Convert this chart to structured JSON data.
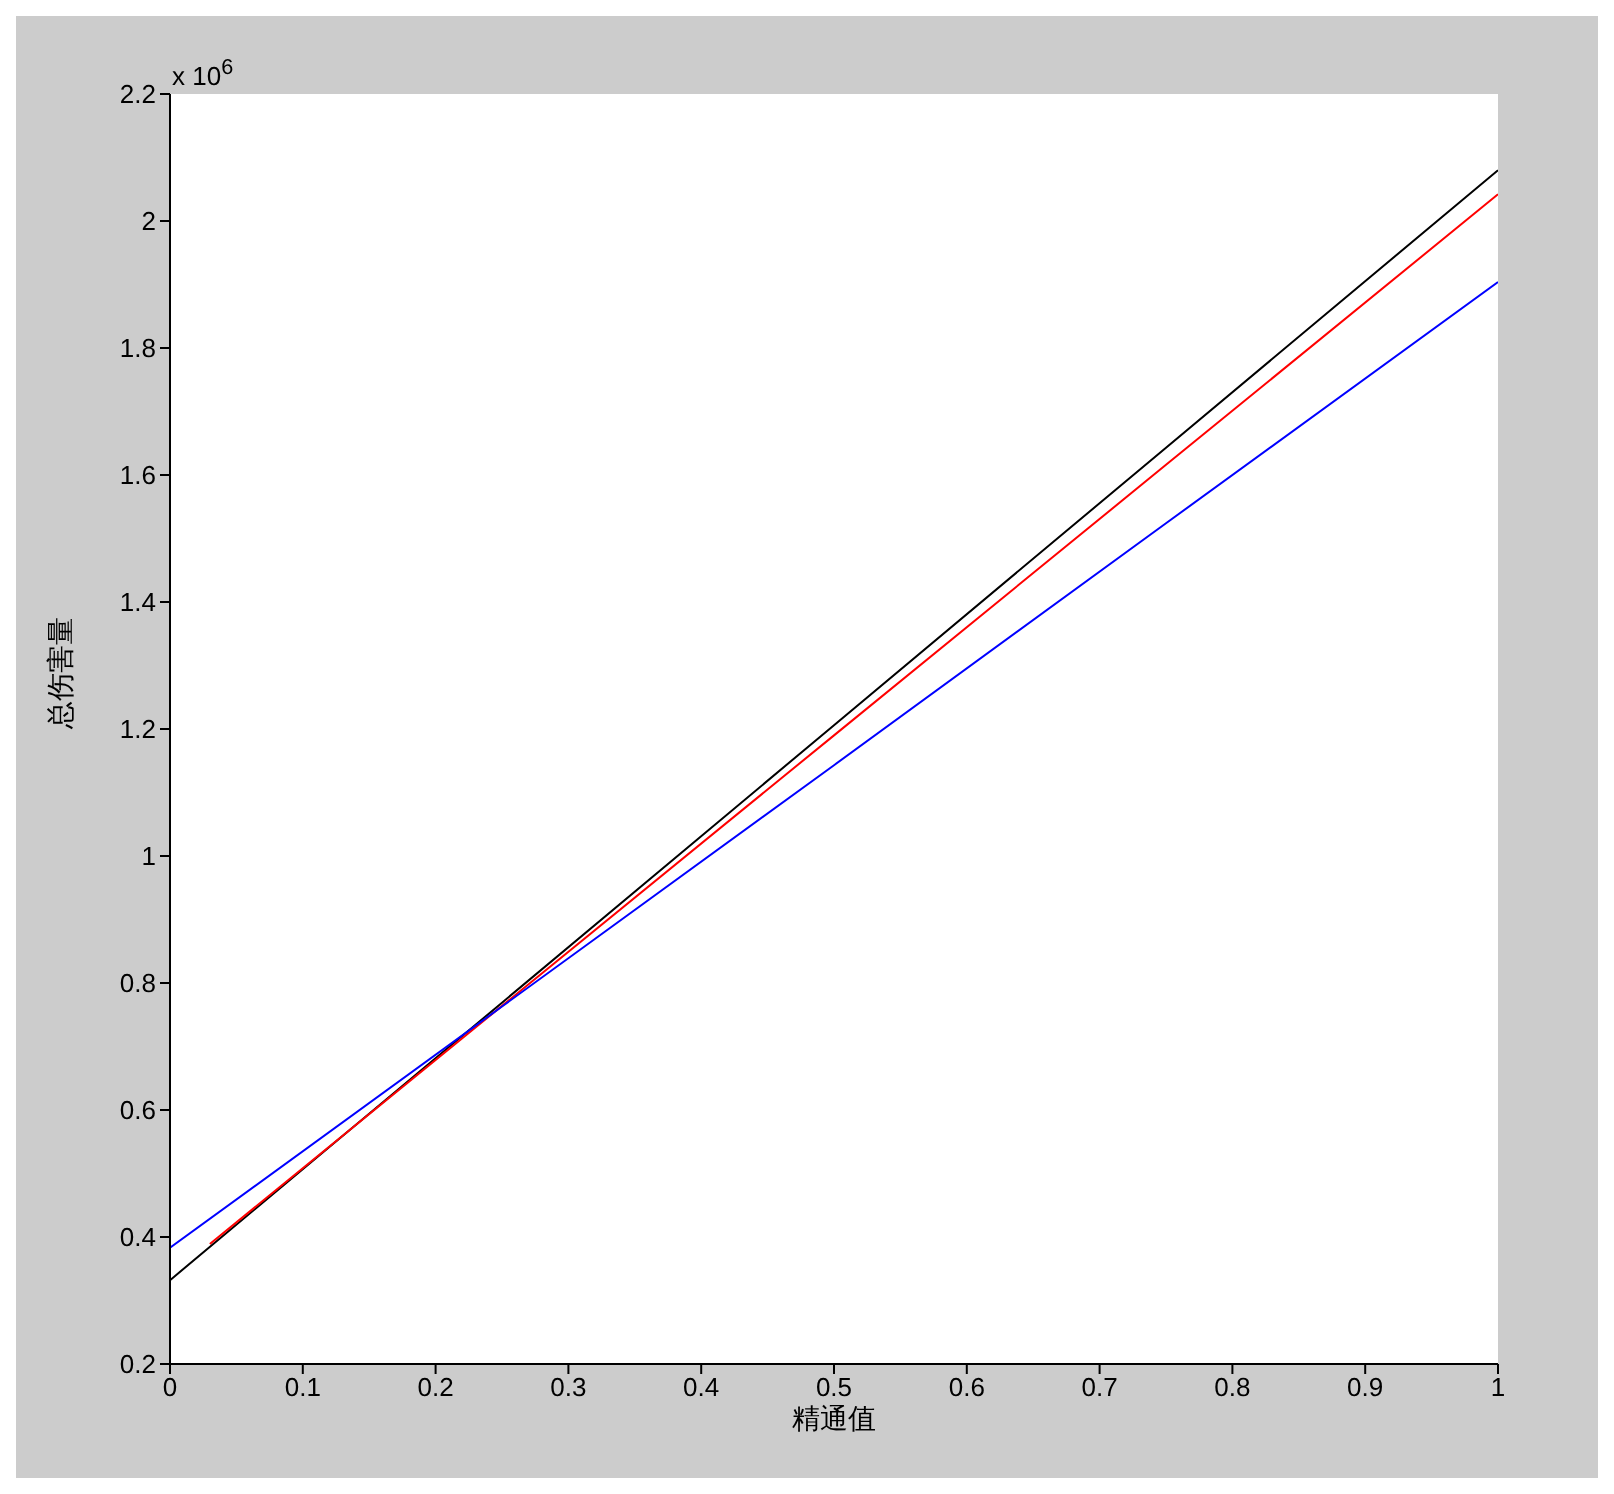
{
  "chart_data": {
    "type": "line",
    "xlabel": "精通值",
    "ylabel": "总伤害量",
    "annotations": [
      "x 10$^{6}$"
    ],
    "series": [
      {
        "color": "#000000",
        "x": [
          0,
          0.25,
          0.5,
          0.75,
          1
        ],
        "values": [
          0.332,
          0.769,
          1.206,
          1.643,
          2.08
        ]
      },
      {
        "color": "#ff0000",
        "x": [
          0.03,
          0.25,
          0.5,
          0.75,
          1
        ],
        "values": [
          0.389,
          0.764,
          1.19,
          1.616,
          2.042
        ]
      },
      {
        "color": "#0000ff",
        "x": [
          0,
          0.25,
          0.5,
          0.75,
          1
        ],
        "values": [
          0.383,
          0.763,
          1.143,
          1.524,
          1.904
        ]
      }
    ],
    "xlim": [
      0,
      1
    ],
    "xticks": [
      0,
      0.1,
      0.2,
      0.3,
      0.4,
      0.5,
      0.6,
      0.7,
      0.8,
      0.9,
      1
    ],
    "ylim": [
      0.2,
      2.2
    ],
    "yticks": [
      0.2,
      0.4,
      0.6,
      0.8,
      1,
      1.2,
      1.4,
      1.6,
      1.8,
      2,
      2.2
    ],
    "marker": "none",
    "line_style": "solid"
  }
}
